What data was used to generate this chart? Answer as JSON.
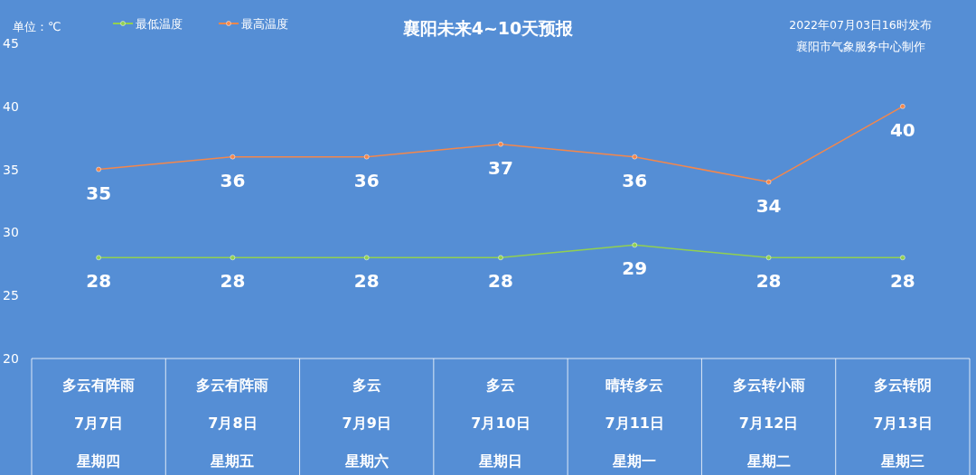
{
  "chart_data": {
    "type": "line",
    "title": "襄阳未来4~10天预报",
    "ylabel": "单位：℃",
    "annotations": [
      "2022年07月03日16时发布",
      "襄阳市气象服务中心制作",
      "多云有阵雨",
      "星期四",
      "多云有阵雨",
      "星期五",
      "多云",
      "星期六",
      "多云",
      "星期日",
      "晴转多云",
      "星期一",
      "多云转小雨",
      "星期二",
      "多云转阴",
      "星期三"
    ],
    "categories": [
      "7月7日",
      "7月8日",
      "7月9日",
      "7月10日",
      "7月11日",
      "7月12日",
      "7月13日"
    ],
    "series": [
      {
        "name": "最低温度",
        "color": "#92d050",
        "values": [
          28,
          28,
          28,
          28,
          29,
          28,
          28
        ]
      },
      {
        "name": "最高温度",
        "color": "#f4874b",
        "values": [
          35,
          36,
          36,
          37,
          36,
          34,
          40
        ]
      }
    ],
    "ylim": [
      20,
      45
    ],
    "yticks": [
      20,
      25,
      30,
      35,
      40,
      45
    ],
    "grid": false,
    "legend": "top left",
    "marker": "circle",
    "line_style": "solid",
    "data_labels": true
  }
}
